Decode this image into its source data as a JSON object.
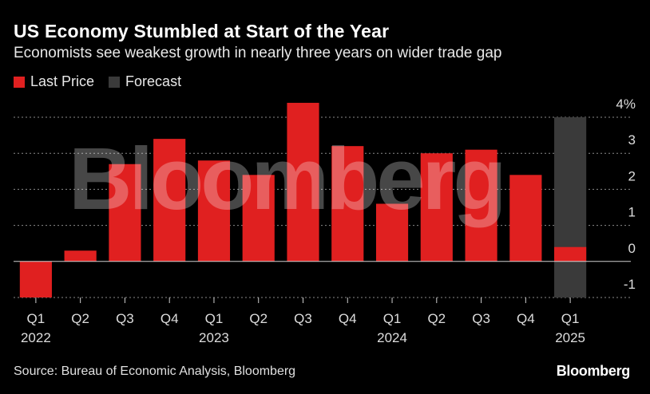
{
  "title": "US Economy Stumbled at Start of the Year",
  "subtitle": "Economists see weakest growth in nearly three years on wider trade gap",
  "legend": [
    {
      "label": "Last Price",
      "color": "#e02020"
    },
    {
      "label": "Forecast",
      "color": "#3a3a3a"
    }
  ],
  "source": "Source: Bureau of Economic Analysis, Bloomberg",
  "brand": "Bloomberg",
  "watermark": "Bloomberg",
  "chart_data": {
    "type": "bar",
    "title": "US Economy Stumbled at Start of the Year",
    "subtitle": "Economists see weakest growth in nearly three years on wider trade gap",
    "categories": [
      "Q1 2022",
      "Q2 2022",
      "Q3 2022",
      "Q4 2022",
      "Q1 2023",
      "Q2 2023",
      "Q3 2023",
      "Q4 2023",
      "Q1 2024",
      "Q2 2024",
      "Q3 2024",
      "Q4 2024",
      "Q1 2025"
    ],
    "x_tick_labels": [
      {
        "q": "Q1",
        "year": "2022"
      },
      {
        "q": "Q2",
        "year": ""
      },
      {
        "q": "Q3",
        "year": ""
      },
      {
        "q": "Q4",
        "year": ""
      },
      {
        "q": "Q1",
        "year": "2023"
      },
      {
        "q": "Q2",
        "year": ""
      },
      {
        "q": "Q3",
        "year": ""
      },
      {
        "q": "Q4",
        "year": ""
      },
      {
        "q": "Q1",
        "year": "2024"
      },
      {
        "q": "Q2",
        "year": ""
      },
      {
        "q": "Q3",
        "year": ""
      },
      {
        "q": "Q4",
        "year": ""
      },
      {
        "q": "Q1",
        "year": "2025"
      }
    ],
    "series": [
      {
        "name": "Last Price",
        "color": "#e02020",
        "values": [
          -1.0,
          0.3,
          2.7,
          3.4,
          2.8,
          2.4,
          4.4,
          3.2,
          1.6,
          3.0,
          3.1,
          2.4,
          0.4
        ]
      },
      {
        "name": "Forecast",
        "color": "#3a3a3a",
        "values": [
          null,
          null,
          null,
          null,
          null,
          null,
          null,
          null,
          null,
          null,
          null,
          null,
          [
            -1.0,
            4.0
          ]
        ]
      }
    ],
    "ylim": [
      -1,
      4
    ],
    "y_ticks": [
      4,
      3,
      2,
      1,
      0,
      -1
    ],
    "y_tick_labels": [
      "4%",
      "3",
      "2",
      "1",
      "0",
      "-1"
    ],
    "xlabel": "",
    "ylabel": "",
    "grid": true,
    "legend_position": "top-left"
  }
}
